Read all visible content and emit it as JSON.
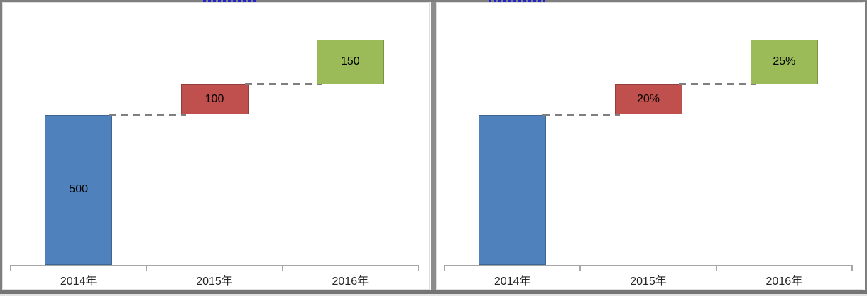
{
  "frame": {
    "background": "#ffffff",
    "border_color": "#7f7f7f",
    "bottom_strip_color": "#757575",
    "divider_color": "#8c8c8c",
    "clipped_link_dot_color": "#2222cc"
  },
  "colors": {
    "bar_blue": "#4F81BD",
    "bar_red": "#C0504D",
    "bar_green": "#9BBB59",
    "connector_gray": "#7f7f7f",
    "axis_gray": "#a6a6a6",
    "label_text": "#000000",
    "category_text": "#262626"
  },
  "chart_data": [
    {
      "type": "bar",
      "subtype": "waterfall",
      "title": "",
      "xlabel": "",
      "ylabel": "",
      "grid": false,
      "legend": false,
      "categories": [
        "2014年",
        "2015年",
        "2016年"
      ],
      "values": [
        500,
        100,
        150
      ],
      "value_labels": [
        "500",
        "100",
        "150"
      ],
      "cumulative_ranges": [
        [
          0,
          500
        ],
        [
          500,
          600
        ],
        [
          600,
          750
        ]
      ],
      "bar_colors": [
        "#4F81BD",
        "#C0504D",
        "#9BBB59"
      ],
      "connector_style": "dashed",
      "ylim": [
        0,
        865
      ]
    },
    {
      "type": "bar",
      "subtype": "waterfall",
      "title": "",
      "xlabel": "",
      "ylabel": "",
      "grid": false,
      "legend": false,
      "categories": [
        "2014年",
        "2015年",
        "2016年"
      ],
      "values": [
        500,
        100,
        150
      ],
      "value_labels": [
        "",
        "20%",
        "25%"
      ],
      "cumulative_ranges": [
        [
          0,
          500
        ],
        [
          500,
          600
        ],
        [
          600,
          750
        ]
      ],
      "bar_colors": [
        "#4F81BD",
        "#C0504D",
        "#9BBB59"
      ],
      "connector_style": "dashed",
      "ylim": [
        0,
        865
      ]
    }
  ]
}
